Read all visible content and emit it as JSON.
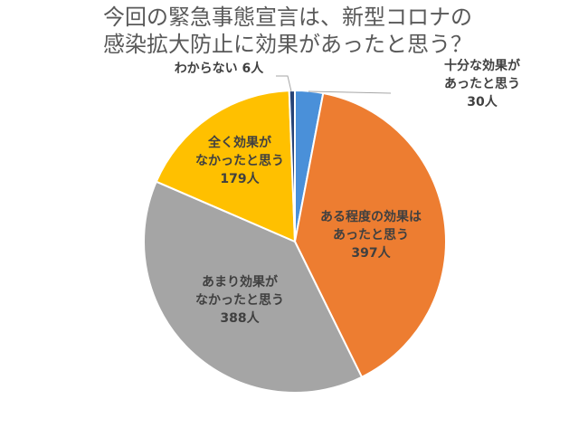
{
  "chart_data": {
    "type": "pie",
    "title_lines": [
      "今回の緊急事態宣言は、新型コロナの",
      "感染拡大防止に効果があったと思う？"
    ],
    "start_angle_deg": 0,
    "direction": "clockwise",
    "slices": [
      {
        "label_lines": [
          "十分な効果が",
          "あったと思う",
          "30人"
        ],
        "category": "十分な効果があったと思う",
        "value": 30,
        "color": "#4A90D9"
      },
      {
        "label_lines": [
          "ある程度の効果は",
          "あったと思う",
          "397人"
        ],
        "category": "ある程度の効果はあったと思う",
        "value": 397,
        "color": "#ED7D31"
      },
      {
        "label_lines": [
          "あまり効果が",
          "なかったと思う",
          "388人"
        ],
        "category": "あまり効果がなかったと思う",
        "value": 388,
        "color": "#A5A5A5"
      },
      {
        "label_lines": [
          "全く効果が",
          "なかったと思う",
          "179人"
        ],
        "category": "全く効果がなかったと思う",
        "value": 179,
        "color": "#FFC000"
      },
      {
        "label_lines": [
          "わからない 6人"
        ],
        "category": "わからない",
        "value": 6,
        "color": "#264478"
      }
    ],
    "legend": "none"
  }
}
